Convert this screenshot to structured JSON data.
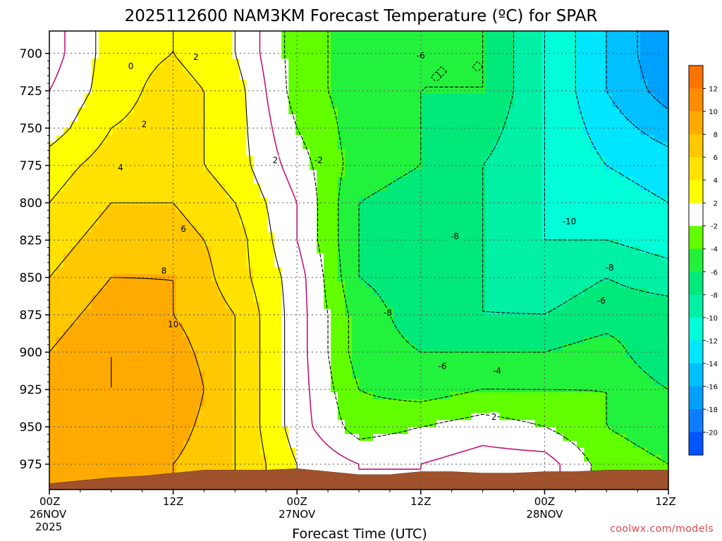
{
  "chart_data": {
    "type": "time-height contour",
    "title": "2025112600 NAM3KM Forecast Temperature (ºC) for SPAR",
    "xlabel": "Forecast Time (UTC)",
    "ylabel": "",
    "watermark": "coolwx.com/models",
    "x_hours": [
      0,
      6,
      12,
      18,
      24,
      30,
      36,
      42,
      48,
      54,
      60
    ],
    "x_ticks": [
      {
        "hour": 0,
        "hh": "00Z",
        "date": "26NOV",
        "year": "2025"
      },
      {
        "hour": 12,
        "hh": "12Z",
        "date": "",
        "year": ""
      },
      {
        "hour": 24,
        "hh": "00Z",
        "date": "27NOV",
        "year": ""
      },
      {
        "hour": 36,
        "hh": "12Z",
        "date": "",
        "year": ""
      },
      {
        "hour": 48,
        "hh": "00Z",
        "date": "28NOV",
        "year": ""
      },
      {
        "hour": 60,
        "hh": "12Z",
        "date": "",
        "year": ""
      }
    ],
    "xlim": [
      0,
      60
    ],
    "pressure_levels": [
      700,
      725,
      750,
      775,
      800,
      825,
      850,
      875,
      900,
      925,
      950,
      975
    ],
    "ylim": [
      685,
      992
    ],
    "y_ticks": [
      700,
      725,
      750,
      775,
      800,
      825,
      850,
      875,
      900,
      925,
      950,
      975
    ],
    "temperature_c": [
      [
        -1,
        3,
        4,
        2,
        -3,
        -5,
        -6,
        -6,
        -10,
        -14,
        -18
      ],
      [
        0,
        3,
        5,
        3,
        -3,
        -5,
        -6,
        -6,
        -10,
        -14,
        -17
      ],
      [
        1,
        4,
        5,
        3,
        -2,
        -5,
        -6,
        -7,
        -10,
        -13,
        -15
      ],
      [
        3,
        5,
        5,
        3,
        -1,
        -5,
        -6,
        -8,
        -10,
        -12,
        -13
      ],
      [
        4,
        6,
        6,
        4,
        0,
        -6,
        -7,
        -8,
        -10,
        -11,
        -12
      ],
      [
        5,
        7,
        7,
        5,
        0,
        -6,
        -7,
        -8,
        -10,
        -10,
        -11
      ],
      [
        6,
        8,
        8,
        5,
        1,
        -6,
        -7,
        -8,
        -9,
        -8,
        -9
      ],
      [
        7,
        9,
        8,
        6,
        1,
        -5,
        -7,
        -8,
        -8,
        -7,
        -7
      ],
      [
        8,
        10,
        9,
        6,
        1,
        -5,
        -6,
        -6,
        -6,
        -5,
        -8
      ],
      [
        8,
        10,
        10,
        6,
        1,
        -4,
        -5,
        -4,
        -4,
        -4,
        -6
      ],
      [
        8,
        9,
        9,
        6,
        1,
        -3,
        -2,
        -1,
        -2,
        -4,
        -5
      ],
      [
        8,
        8,
        8,
        6,
        2,
        0,
        0,
        1,
        1,
        -3,
        -4
      ]
    ],
    "contour_levels": [
      -20,
      -18,
      -16,
      -14,
      -12,
      -10,
      -8,
      -6,
      -4,
      -2,
      0,
      2,
      4,
      6,
      8,
      10,
      12
    ],
    "contour_labels": [
      {
        "value": "0",
        "hour": 7.9,
        "p": 709
      },
      {
        "value": "2",
        "hour": 14.2,
        "p": 703
      },
      {
        "value": "2",
        "hour": 9.2,
        "p": 748
      },
      {
        "value": "4",
        "hour": 6.9,
        "p": 777
      },
      {
        "value": "2",
        "hour": 21.9,
        "p": 772
      },
      {
        "value": "-2",
        "hour": 26.1,
        "p": 772
      },
      {
        "value": "-6",
        "hour": 36.0,
        "p": 702
      },
      {
        "value": "6",
        "hour": 13.0,
        "p": 818
      },
      {
        "value": "8",
        "hour": 11.1,
        "p": 846
      },
      {
        "value": "10",
        "hour": 12.0,
        "p": 882
      },
      {
        "value": "-8",
        "hour": 39.3,
        "p": 823
      },
      {
        "value": "-10",
        "hour": 50.4,
        "p": 813
      },
      {
        "value": "-8",
        "hour": 54.3,
        "p": 844
      },
      {
        "value": "-6",
        "hour": 53.5,
        "p": 866
      },
      {
        "value": "-8",
        "hour": 32.8,
        "p": 874
      },
      {
        "value": "-6",
        "hour": 38.1,
        "p": 910
      },
      {
        "value": "-4",
        "hour": 43.4,
        "p": 913
      },
      {
        "value": "2",
        "hour": 43.1,
        "p": 944
      }
    ],
    "terrain_pressure": [
      988,
      986,
      984,
      983,
      981,
      979,
      979,
      979,
      978,
      980,
      982,
      982,
      980,
      980,
      981,
      981,
      980,
      980,
      979,
      979,
      979
    ],
    "colorbar": {
      "levels": [
        -22,
        -20,
        -18,
        -16,
        -14,
        -12,
        -10,
        -8,
        -6,
        -4,
        -2,
        2,
        4,
        6,
        8,
        10,
        12,
        14
      ],
      "tick_labels": [
        "-20",
        "-18",
        "-16",
        "-14",
        "-12",
        "-10",
        "-8",
        "-6",
        "-4",
        "-2",
        "2",
        "4",
        "6",
        "8",
        "10",
        "12"
      ],
      "colors": [
        "#0055ff",
        "#0e7dfb",
        "#00a0ff",
        "#00c0ff",
        "#00e6ff",
        "#00ffd8",
        "#00f0a5",
        "#00e97a",
        "#22f23c",
        "#62ff00",
        "#ffffff",
        "#ffff00",
        "#ffe200",
        "#ffc800",
        "#ffaa00",
        "#ff8c00",
        "#ff7400"
      ]
    },
    "terrain_color": "#a0522d",
    "freezing_line_color": "#c0147a"
  }
}
